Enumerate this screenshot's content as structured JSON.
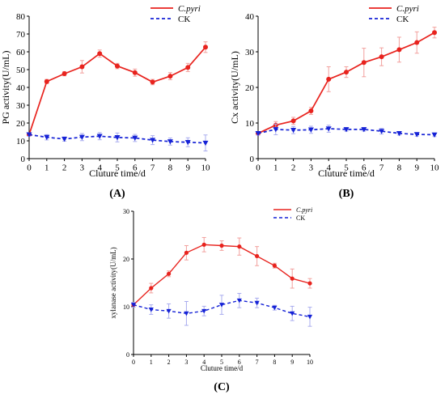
{
  "figure": {
    "panel_labels": [
      "(A)",
      "(B)",
      "(C)"
    ]
  },
  "chart_data": [
    {
      "type": "line",
      "panel": "(A)",
      "title": "",
      "xlabel": "Cluture time/d",
      "ylabel": "PG activity(U/mL)",
      "xlim": [
        0,
        10
      ],
      "ylim": [
        0,
        80
      ],
      "x_ticks": [
        0,
        1,
        2,
        3,
        4,
        5,
        6,
        7,
        8,
        9,
        10
      ],
      "y_ticks": [
        0,
        10,
        20,
        30,
        40,
        50,
        60,
        70,
        80
      ],
      "grid": false,
      "legend_position": "top-right",
      "x": [
        0,
        1,
        2,
        3,
        4,
        5,
        6,
        7,
        8,
        9,
        10
      ],
      "series": [
        {
          "name": "C.pyri",
          "color": "#e8231e",
          "line_style": "solid",
          "marker": "circle",
          "values": [
            13.5,
            43.3,
            47.7,
            51.6,
            59.0,
            52.0,
            48.3,
            43.0,
            46.3,
            51.2,
            62.6
          ],
          "errors": [
            1.0,
            1.2,
            1.2,
            3.5,
            2.0,
            1.5,
            2.0,
            1.5,
            2.0,
            2.3,
            3.0
          ]
        },
        {
          "name": "CK",
          "color": "#1522d6",
          "line_style": "dashed",
          "marker": "triangle-down",
          "values": [
            13.5,
            12.0,
            11.0,
            12.1,
            12.6,
            11.9,
            11.6,
            10.4,
            9.6,
            9.2,
            8.8
          ],
          "errors": [
            1.0,
            1.5,
            1.2,
            2.0,
            2.0,
            2.5,
            2.0,
            2.5,
            2.0,
            2.5,
            4.5
          ]
        }
      ]
    },
    {
      "type": "line",
      "panel": "(B)",
      "title": "",
      "xlabel": "Cluture time/d",
      "ylabel": "Cx activity(U/mL)",
      "xlim": [
        0,
        10
      ],
      "ylim": [
        0,
        40
      ],
      "x_ticks": [
        0,
        1,
        2,
        3,
        4,
        5,
        6,
        7,
        8,
        9,
        10
      ],
      "y_ticks": [
        0,
        10,
        20,
        30,
        40
      ],
      "grid": false,
      "legend_position": "top-right",
      "x": [
        0,
        1,
        2,
        3,
        4,
        5,
        6,
        7,
        8,
        9,
        10
      ],
      "series": [
        {
          "name": "C.pyri",
          "color": "#e8231e",
          "line_style": "solid",
          "marker": "circle",
          "values": [
            7.1,
            9.4,
            10.6,
            13.4,
            22.3,
            24.3,
            27.0,
            28.6,
            30.6,
            32.6,
            35.4
          ],
          "errors": [
            0.5,
            1.0,
            1.0,
            1.0,
            3.5,
            1.5,
            4.0,
            2.5,
            3.5,
            3.0,
            1.5
          ]
        },
        {
          "name": "CK",
          "color": "#1522d6",
          "line_style": "dashed",
          "marker": "triangle-down",
          "values": [
            7.1,
            8.2,
            8.0,
            8.1,
            8.4,
            8.2,
            8.2,
            7.7,
            7.1,
            6.8,
            6.7
          ],
          "errors": [
            0.5,
            1.5,
            1.0,
            1.0,
            1.0,
            0.5,
            0.5,
            0.8,
            0.5,
            0.5,
            0.5
          ]
        }
      ]
    },
    {
      "type": "line",
      "panel": "(C)",
      "title": "",
      "xlabel": "Cluture time/d",
      "ylabel": "xylanase activity(U/mL)",
      "xlim": [
        0,
        10
      ],
      "ylim": [
        0,
        30
      ],
      "x_ticks": [
        0,
        1,
        2,
        3,
        4,
        5,
        6,
        7,
        8,
        9,
        10
      ],
      "y_ticks": [
        0,
        10,
        20,
        30
      ],
      "grid": false,
      "legend_position": "top-right",
      "x": [
        0,
        1,
        2,
        3,
        4,
        5,
        6,
        7,
        8,
        9,
        10
      ],
      "series": [
        {
          "name": "C.pyri",
          "color": "#e8231e",
          "line_style": "solid",
          "marker": "circle",
          "values": [
            10.4,
            13.9,
            16.9,
            21.3,
            23.0,
            22.8,
            22.6,
            20.6,
            18.6,
            15.9,
            14.9
          ],
          "errors": [
            0.5,
            1.0,
            0.6,
            1.5,
            1.5,
            1.0,
            1.8,
            2.0,
            0.5,
            2.0,
            1.0
          ]
        },
        {
          "name": "CK",
          "color": "#1522d6",
          "line_style": "dashed",
          "marker": "triangle-down",
          "values": [
            10.4,
            9.4,
            9.1,
            8.6,
            9.1,
            10.4,
            11.3,
            10.8,
            9.8,
            8.6,
            7.9
          ],
          "errors": [
            0.5,
            1.0,
            1.5,
            2.5,
            1.0,
            2.0,
            1.5,
            1.0,
            0.5,
            1.5,
            2.0
          ]
        }
      ]
    }
  ]
}
